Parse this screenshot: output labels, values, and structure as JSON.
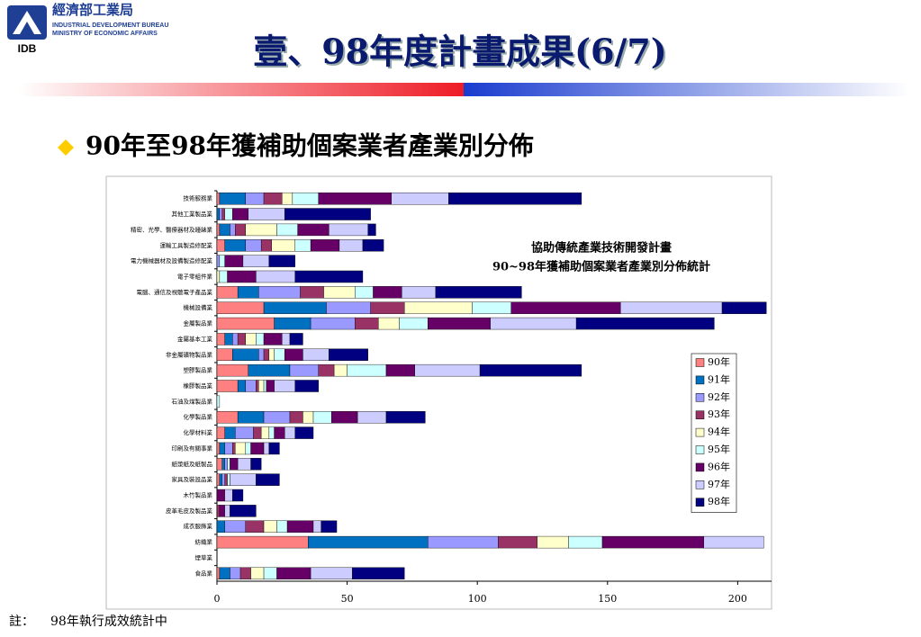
{
  "header": {
    "org_name": "經濟部工業局",
    "org_en_1": "INDUSTRIAL DEVELOPMENT BUREAU",
    "org_en_2": "MINISTRY OF ECONOMIC AFFAIRS",
    "abbr": "IDB"
  },
  "title": "壹、98年度計畫成果(6/7)",
  "bullet": "90年至98年獲補助個案業者產業別分佈",
  "chart_data": {
    "type": "bar",
    "orientation": "horizontal",
    "stacked": true,
    "title": "協助傳統產業技術開發計畫",
    "subtitle": "90~98年獲補助個案業者產業別分佈統計",
    "categories": [
      "技術服務業",
      "其他工業製品業",
      "精密、光學、醫療器材及鐘錶業",
      "運輸工具製造修配業",
      "電力機械器材及設備製造修配業",
      "電子零組件業",
      "電腦、通信及視聽電子產品業",
      "機械設備業",
      "金屬製品業",
      "金屬基本工業",
      "非金屬礦物製品業",
      "塑膠製品業",
      "橡膠製品業",
      "石油及煤製品業",
      "化學製品業",
      "化學材料業",
      "印刷及有關事業",
      "紙漿紙及紙製品",
      "家具及裝設品業",
      "木竹製品業",
      "皮革毛皮及製品業",
      "成衣服飾業",
      "紡織業",
      "煙草業",
      "食品業"
    ],
    "series": [
      {
        "name": "90年",
        "color": "#ff8080",
        "values": [
          1,
          0,
          1,
          3,
          0,
          0,
          8,
          18,
          22,
          3,
          6,
          12,
          8,
          0,
          8,
          3,
          1,
          2,
          1,
          0,
          0,
          0,
          35,
          0,
          1
        ]
      },
      {
        "name": "91年",
        "color": "#0070c0",
        "values": [
          10,
          1,
          4,
          8,
          0,
          0,
          8,
          24,
          14,
          3,
          10,
          16,
          3,
          0,
          10,
          4,
          2,
          1,
          1,
          0,
          0,
          3,
          46,
          0,
          4
        ]
      },
      {
        "name": "92年",
        "color": "#9999ff",
        "values": [
          7,
          1,
          2,
          6,
          1,
          0,
          16,
          17,
          17,
          2,
          2,
          11,
          4,
          0,
          10,
          7,
          3,
          1,
          1,
          0,
          0,
          8,
          27,
          0,
          4
        ]
      },
      {
        "name": "93年",
        "color": "#993366",
        "values": [
          7,
          1,
          4,
          4,
          0,
          0,
          9,
          13,
          9,
          3,
          2,
          6,
          1,
          0,
          5,
          3,
          1,
          0,
          1,
          0,
          1,
          7,
          15,
          0,
          4
        ]
      },
      {
        "name": "94年",
        "color": "#ffffcc",
        "values": [
          4,
          0,
          12,
          9,
          0,
          1,
          12,
          26,
          8,
          4,
          2,
          5,
          2,
          0,
          4,
          3,
          4,
          0,
          0,
          0,
          0,
          5,
          12,
          0,
          5
        ]
      },
      {
        "name": "95年",
        "color": "#ccffff",
        "values": [
          10,
          3,
          8,
          6,
          2,
          3,
          7,
          15,
          11,
          3,
          4,
          15,
          1,
          1,
          7,
          2,
          2,
          1,
          1,
          0,
          0,
          4,
          13,
          0,
          5
        ]
      },
      {
        "name": "96年",
        "color": "#660066",
        "values": [
          28,
          6,
          12,
          11,
          7,
          11,
          11,
          42,
          24,
          7,
          7,
          11,
          3,
          0,
          10,
          4,
          5,
          3,
          0,
          3,
          2,
          10,
          39,
          0,
          13
        ]
      },
      {
        "name": "97年",
        "color": "#ccccff",
        "values": [
          22,
          14,
          15,
          9,
          10,
          15,
          13,
          39,
          33,
          3,
          10,
          25,
          8,
          0,
          11,
          4,
          2,
          5,
          10,
          3,
          2,
          3,
          23,
          0,
          16
        ]
      },
      {
        "name": "98年",
        "color": "#000080",
        "values": [
          51,
          33,
          3,
          8,
          10,
          26,
          33,
          17,
          53,
          5,
          15,
          39,
          9,
          0,
          15,
          7,
          4,
          4,
          9,
          4,
          10,
          6,
          0,
          0,
          20
        ]
      }
    ],
    "xlim": [
      0,
      213
    ],
    "xticks": [
      0,
      50,
      100,
      150,
      200
    ],
    "legend": "right"
  },
  "note": {
    "label": "註：",
    "text": "98年執行成效統計中"
  }
}
